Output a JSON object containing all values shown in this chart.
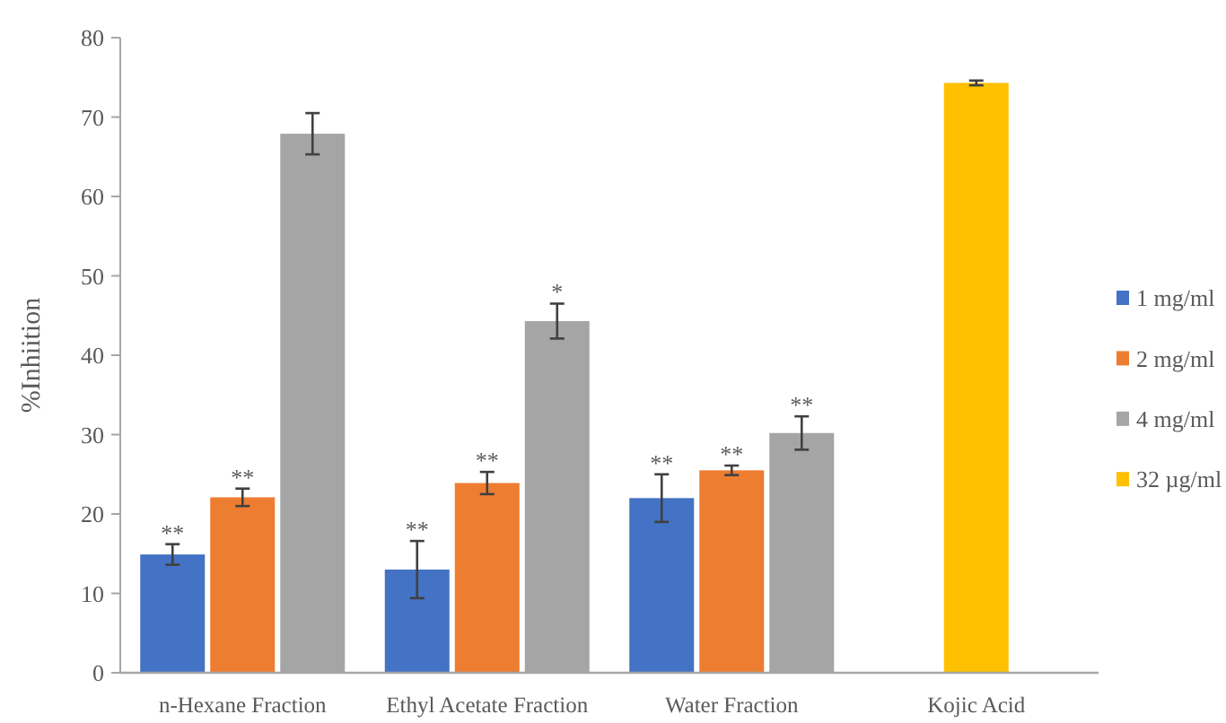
{
  "chart_data": {
    "type": "bar",
    "ylabel": "%Inhiition",
    "categories": [
      "n-Hexane Fraction",
      "Ethyl Acetate Fraction",
      "Water Fraction",
      "Kojic Acid"
    ],
    "ylim": [
      0,
      80
    ],
    "yticks": [
      0,
      10,
      20,
      30,
      40,
      50,
      60,
      70,
      80
    ],
    "grid": false,
    "legend": "right",
    "series": [
      {
        "name": "1 mg/ml",
        "color": "#4472c4",
        "values": [
          14.9,
          13.0,
          22.0,
          null
        ],
        "errors": [
          1.3,
          3.6,
          3.0,
          null
        ],
        "value_labels": [
          "**",
          "**",
          "**",
          null
        ]
      },
      {
        "name": "2 mg/ml",
        "color": "#ed7d31",
        "values": [
          22.1,
          23.9,
          25.5,
          null
        ],
        "errors": [
          1.1,
          1.4,
          0.6,
          null
        ],
        "value_labels": [
          "**",
          "**",
          "**",
          null
        ]
      },
      {
        "name": "4 mg/ml",
        "color": "#a5a5a5",
        "values": [
          67.9,
          44.3,
          30.2,
          null
        ],
        "errors": [
          2.6,
          2.2,
          2.1,
          null
        ],
        "value_labels": [
          null,
          "*",
          "**",
          null
        ]
      },
      {
        "name": "32 µg/ml",
        "color": "#ffc000",
        "values": [
          null,
          null,
          null,
          74.3
        ],
        "errors": [
          null,
          null,
          null,
          0.3
        ]
      }
    ]
  }
}
